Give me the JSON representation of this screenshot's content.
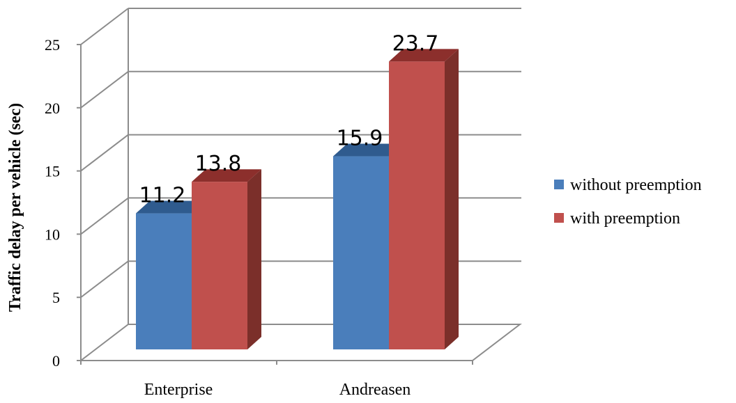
{
  "chart_data": {
    "type": "bar",
    "categories": [
      "Enterprise",
      "Andreasen"
    ],
    "series": [
      {
        "name": "without preemption",
        "values": [
          11.2,
          15.9
        ],
        "color": "#4a7ebb",
        "top_color": "#2f5b8e",
        "side_color": "#2f5b8e"
      },
      {
        "name": "with preemption",
        "values": [
          13.8,
          23.7
        ],
        "color": "#c0504d",
        "top_color": "#8c2f2c",
        "side_color": "#7b2f2a"
      }
    ],
    "ylabel": "Traffic delay per vehicle (sec)",
    "xlabel": "",
    "ylim": [
      0,
      25
    ],
    "yticks": [
      "0",
      "5",
      "10",
      "15",
      "20",
      "25"
    ],
    "data_labels": [
      [
        "11.2",
        "15.9"
      ],
      [
        "13.8",
        "23.7"
      ]
    ],
    "grid": true,
    "legend_position": "right"
  }
}
